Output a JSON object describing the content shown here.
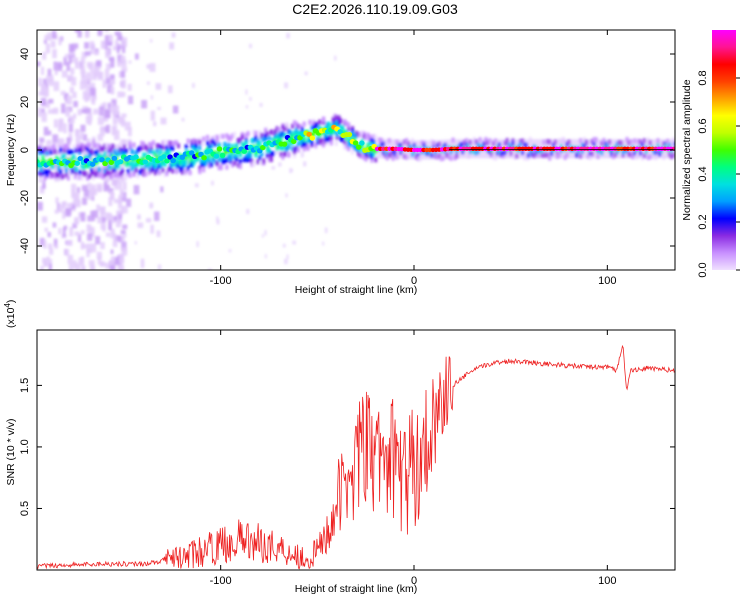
{
  "title": "C2E2.2026.110.19.09.G03",
  "colors": {
    "background": "#ffffff",
    "snr_line": "#ee2222",
    "ridge": "#000000"
  },
  "chart_data": [
    {
      "type": "heatmap",
      "title": "C2E2.2026.110.19.09.G03",
      "xlabel": "Height of straight line (km)",
      "ylabel": "Frequency (Hz)",
      "xlim": [
        -195,
        135
      ],
      "ylim": [
        -50,
        50
      ],
      "xticks": [
        -100,
        0,
        100
      ],
      "xtick_labels": [
        "-100",
        "0",
        "100"
      ],
      "yticks": [
        -40,
        -20,
        0,
        20,
        40
      ],
      "ytick_labels": [
        "-40",
        "-20",
        "0",
        "20",
        "40"
      ],
      "grid": false,
      "ridge": {
        "x": [
          -195,
          -180,
          -160,
          -140,
          -120,
          -100,
          -80,
          -60,
          -50,
          -40,
          -35,
          -30,
          -25,
          -20,
          -10,
          0,
          10,
          20,
          40,
          60,
          80,
          100,
          135
        ],
        "freq": [
          -5,
          -5,
          -4.5,
          -4,
          -3,
          -1,
          1,
          5,
          7,
          9,
          6,
          3,
          1,
          0.5,
          0.5,
          0,
          0,
          0.5,
          0.5,
          0.5,
          0.5,
          0.5,
          0.5
        ]
      },
      "scatter_region_x": [
        -195,
        -150
      ],
      "colorbar": {
        "label": "Normalized spectral amplitude",
        "range": [
          0,
          1
        ],
        "ticks": [
          0.0,
          0.2,
          0.4,
          0.6,
          0.8
        ],
        "tick_labels": [
          "0.0",
          "0.2",
          "0.4",
          "0.6",
          "0.8"
        ],
        "colormap": [
          "#f0e0ff",
          "#c890ff",
          "#8a2be2",
          "#0000ff",
          "#00a0ff",
          "#00e0e0",
          "#00ff80",
          "#40ff00",
          "#c0ff00",
          "#ffff00",
          "#ffa000",
          "#ff4000",
          "#ff0000",
          "#ff1493",
          "#ff00ff"
        ]
      }
    },
    {
      "type": "line",
      "xlabel": "Height of straight line (km)",
      "ylabel": "SNR (10 * v/v)",
      "multiplier_label": "(x10",
      "multiplier_exp": "4",
      "multiplier_close": ")",
      "xlim": [
        -195,
        135
      ],
      "ylim": [
        0,
        1.95
      ],
      "xticks": [
        -100,
        0,
        100
      ],
      "xtick_labels": [
        "-100",
        "0",
        "100"
      ],
      "yticks": [
        0.5,
        1.0,
        1.5
      ],
      "ytick_labels": [
        "0.5",
        "1.0",
        "1.5"
      ],
      "grid": false,
      "series": [
        {
          "name": "SNR",
          "x": [
            -195,
            -180,
            -160,
            -140,
            -130,
            -120,
            -110,
            -100,
            -90,
            -80,
            -70,
            -60,
            -55,
            -50,
            -45,
            -40,
            -35,
            -30,
            -25,
            -20,
            -15,
            -10,
            -5,
            0,
            5,
            10,
            15,
            20,
            30,
            40,
            50,
            60,
            70,
            80,
            90,
            100,
            105,
            108,
            110,
            112,
            120,
            135
          ],
          "y": [
            0.03,
            0.04,
            0.05,
            0.05,
            0.07,
            0.1,
            0.15,
            0.2,
            0.25,
            0.22,
            0.18,
            0.12,
            0.08,
            0.15,
            0.3,
            0.55,
            0.7,
            0.9,
            1.0,
            0.85,
            0.95,
            0.9,
            0.75,
            0.8,
            1.0,
            1.2,
            1.4,
            1.5,
            1.62,
            1.68,
            1.7,
            1.69,
            1.67,
            1.66,
            1.65,
            1.65,
            1.62,
            1.85,
            1.45,
            1.62,
            1.64,
            1.62
          ]
        }
      ]
    }
  ]
}
